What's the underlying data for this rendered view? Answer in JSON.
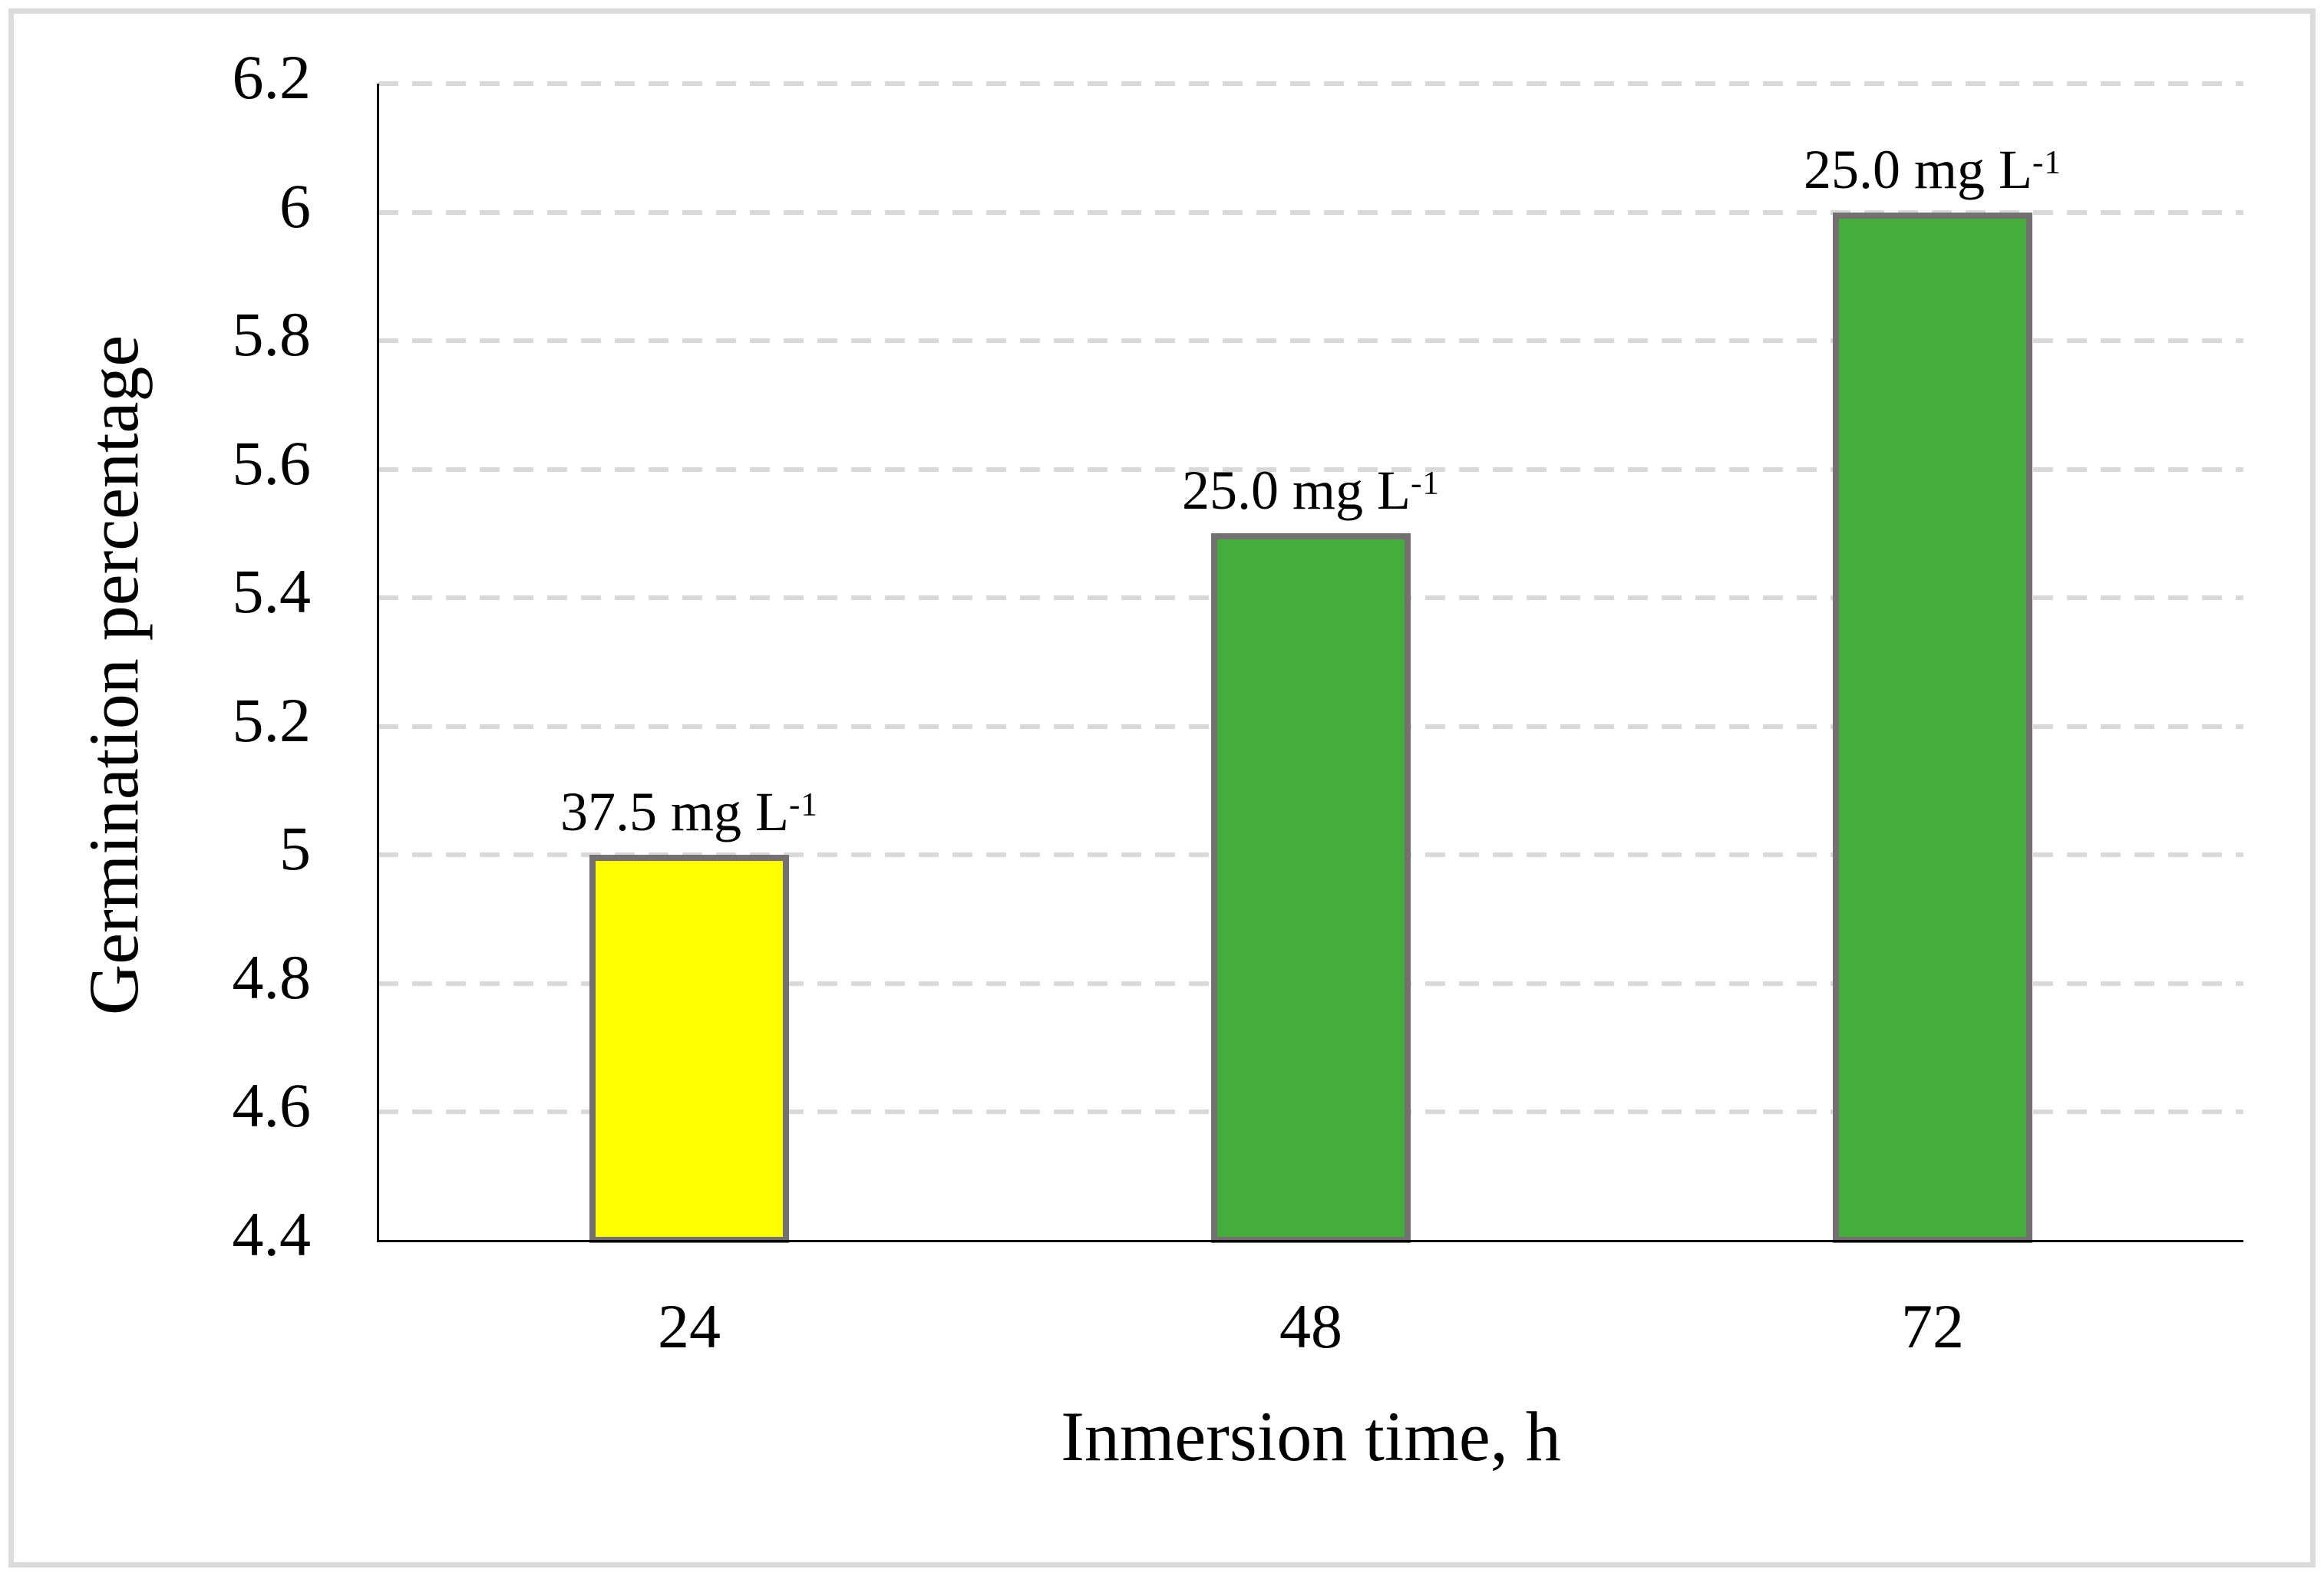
{
  "chart_data": {
    "type": "bar",
    "title": "",
    "xlabel": "Inmersion time, h",
    "ylabel": "Germination percentage",
    "categories": [
      "24",
      "48",
      "72"
    ],
    "values": [
      5.0,
      5.5,
      6.0
    ],
    "bar_labels": [
      {
        "base": "37.5 mg L",
        "sup": "-1"
      },
      {
        "base": "25.0 mg L",
        "sup": "-1"
      },
      {
        "base": "25.0 mg L",
        "sup": "-1"
      }
    ],
    "bar_colors": [
      "#ffff00",
      "#45ad3c",
      "#45ad3c"
    ],
    "bar_border_color": "#757070",
    "ylim": [
      4.4,
      6.2
    ],
    "yticks": [
      {
        "value": 4.4,
        "label": "4.4"
      },
      {
        "value": 4.6,
        "label": "4.6"
      },
      {
        "value": 4.8,
        "label": "4.8"
      },
      {
        "value": 5.0,
        "label": "5"
      },
      {
        "value": 5.2,
        "label": "5.2"
      },
      {
        "value": 5.4,
        "label": "5.4"
      },
      {
        "value": 5.6,
        "label": "5.6"
      },
      {
        "value": 5.8,
        "label": "5.8"
      },
      {
        "value": 6.0,
        "label": "6"
      },
      {
        "value": 6.2,
        "label": "6.2"
      }
    ],
    "grid": {
      "orientation": "horizontal",
      "style": "dashed",
      "color": "#d9d9d9"
    },
    "axis_color": "#000000",
    "frame_color": "#dbdbdb",
    "legend": "none"
  }
}
